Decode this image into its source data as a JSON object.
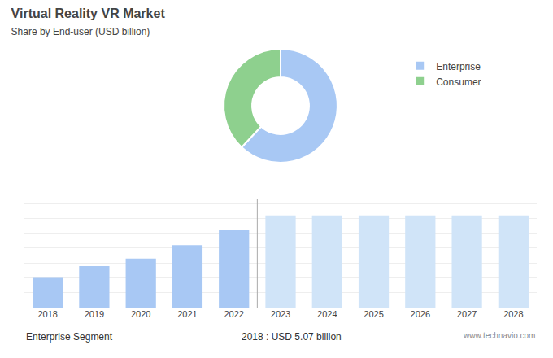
{
  "chart_data": [
    {
      "type": "pie",
      "title": "Virtual Reality VR Market",
      "subtitle": "Share by End-user (USD billion)",
      "categories": [
        "Enterprise",
        "Consumer"
      ],
      "values": [
        62,
        38
      ],
      "colors": [
        "#a8c8f4",
        "#8ed08e"
      ],
      "legend": "upper right",
      "annotations": [
        "Enterprise Segment",
        "2018 : USD 5.07 billion",
        "www.technavio.com"
      ]
    },
    {
      "type": "bar",
      "categories": [
        "2018",
        "2019",
        "2020",
        "2021",
        "2022",
        "2023",
        "2024",
        "2025",
        "2026",
        "2027",
        "2028"
      ],
      "values": [
        1.0,
        1.4,
        1.65,
        2.1,
        2.6,
        3.1,
        3.1,
        3.1,
        3.1,
        3.1,
        3.1
      ],
      "colors": [
        "#a8c8f4",
        "#a8c8f4",
        "#a8c8f4",
        "#a8c8f4",
        "#a8c8f4",
        "#d0e4f8",
        "#d0e4f8",
        "#d0e4f8",
        "#d0e4f8",
        "#d0e4f8",
        "#d0e4f8"
      ],
      "ylim": [
        0,
        3.658
      ],
      "yticks": [
        0,
        0.5,
        1,
        1.5,
        2,
        2.5,
        3,
        3.5
      ],
      "grid": true,
      "tick_labels": "x"
    }
  ]
}
